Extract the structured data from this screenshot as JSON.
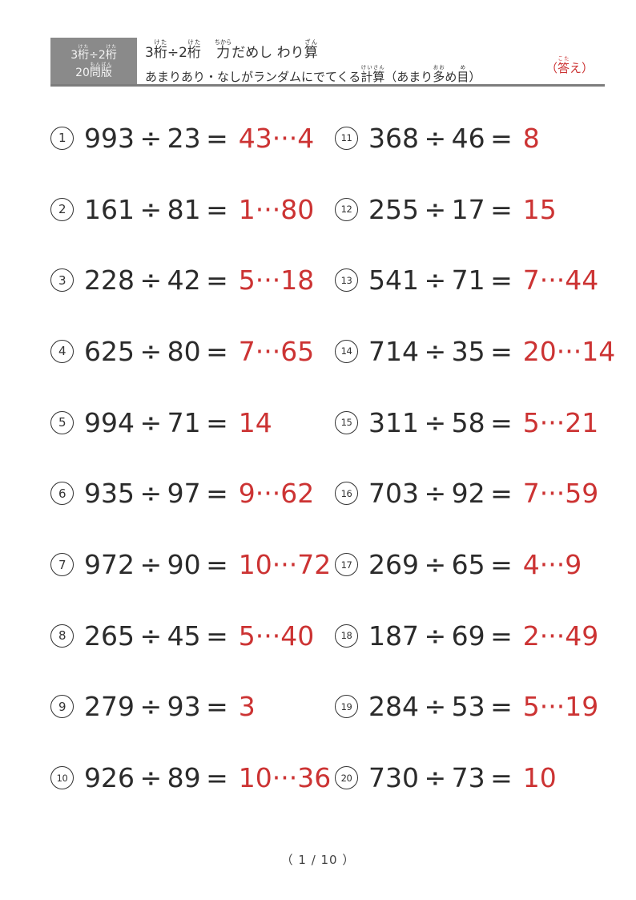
{
  "colors": {
    "answer_red": "#cc3333",
    "ink": "#2b2b2b",
    "header_box_gray": "#8a8a8a",
    "rule_gray": "#7d7d7d"
  },
  "header": {
    "box_line1": [
      {
        "t": "3",
        "r": ""
      },
      {
        "t": "桁",
        "r": "けた"
      },
      {
        "t": "÷",
        "r": ""
      },
      {
        "t": "2",
        "r": ""
      },
      {
        "t": "桁",
        "r": "けた"
      }
    ],
    "box_line2": [
      {
        "t": "20",
        "r": ""
      },
      {
        "t": "問版",
        "r": "もんばん"
      }
    ],
    "title": [
      {
        "t": "3",
        "r": ""
      },
      {
        "t": "桁",
        "r": "けた"
      },
      {
        "t": "÷",
        "r": ""
      },
      {
        "t": "2",
        "r": ""
      },
      {
        "t": "桁",
        "r": "けた"
      },
      {
        "t": "　",
        "r": ""
      },
      {
        "t": "力",
        "r": "ちから"
      },
      {
        "t": "だめし わり",
        "r": ""
      },
      {
        "t": "算",
        "r": "ざん"
      }
    ],
    "subtitle": [
      {
        "t": "あまりあり・なしがランダムにでてくる",
        "r": ""
      },
      {
        "t": "計算",
        "r": "けいさん"
      },
      {
        "t": "（あまり",
        "r": ""
      },
      {
        "t": "多",
        "r": "おお"
      },
      {
        "t": "め",
        "r": ""
      },
      {
        "t": "目",
        "r": "め"
      },
      {
        "t": "）",
        "r": ""
      }
    ],
    "answer_label": [
      {
        "t": "（",
        "r": ""
      },
      {
        "t": "答",
        "r": "こた"
      },
      {
        "t": "え）",
        "r": ""
      }
    ]
  },
  "symbols": {
    "divide": "÷",
    "equals": "=",
    "remainder_separator": "···"
  },
  "problems": [
    {
      "num": "1",
      "dividend": "993",
      "divisor": "23",
      "answer": "43",
      "remainder": "4"
    },
    {
      "num": "2",
      "dividend": "161",
      "divisor": "81",
      "answer": "1",
      "remainder": "80"
    },
    {
      "num": "3",
      "dividend": "228",
      "divisor": "42",
      "answer": "5",
      "remainder": "18"
    },
    {
      "num": "4",
      "dividend": "625",
      "divisor": "80",
      "answer": "7",
      "remainder": "65"
    },
    {
      "num": "5",
      "dividend": "994",
      "divisor": "71",
      "answer": "14",
      "remainder": ""
    },
    {
      "num": "6",
      "dividend": "935",
      "divisor": "97",
      "answer": "9",
      "remainder": "62"
    },
    {
      "num": "7",
      "dividend": "972",
      "divisor": "90",
      "answer": "10",
      "remainder": "72"
    },
    {
      "num": "8",
      "dividend": "265",
      "divisor": "45",
      "answer": "5",
      "remainder": "40"
    },
    {
      "num": "9",
      "dividend": "279",
      "divisor": "93",
      "answer": "3",
      "remainder": ""
    },
    {
      "num": "10",
      "dividend": "926",
      "divisor": "89",
      "answer": "10",
      "remainder": "36"
    },
    {
      "num": "11",
      "dividend": "368",
      "divisor": "46",
      "answer": "8",
      "remainder": ""
    },
    {
      "num": "12",
      "dividend": "255",
      "divisor": "17",
      "answer": "15",
      "remainder": ""
    },
    {
      "num": "13",
      "dividend": "541",
      "divisor": "71",
      "answer": "7",
      "remainder": "44"
    },
    {
      "num": "14",
      "dividend": "714",
      "divisor": "35",
      "answer": "20",
      "remainder": "14"
    },
    {
      "num": "15",
      "dividend": "311",
      "divisor": "58",
      "answer": "5",
      "remainder": "21"
    },
    {
      "num": "16",
      "dividend": "703",
      "divisor": "92",
      "answer": "7",
      "remainder": "59"
    },
    {
      "num": "17",
      "dividend": "269",
      "divisor": "65",
      "answer": "4",
      "remainder": "9"
    },
    {
      "num": "18",
      "dividend": "187",
      "divisor": "69",
      "answer": "2",
      "remainder": "49"
    },
    {
      "num": "19",
      "dividend": "284",
      "divisor": "53",
      "answer": "5",
      "remainder": "19"
    },
    {
      "num": "20",
      "dividend": "730",
      "divisor": "73",
      "answer": "10",
      "remainder": ""
    }
  ],
  "footer": {
    "page": "（ 1 / 10 ）"
  }
}
